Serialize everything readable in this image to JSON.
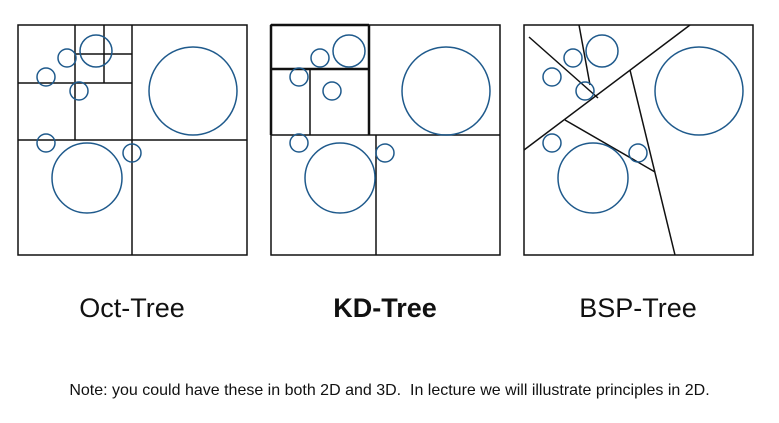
{
  "panels": [
    {
      "id": "oct",
      "label": "Oct-Tree",
      "emphasized": false
    },
    {
      "id": "kd",
      "label": "KD-Tree",
      "emphasized": true
    },
    {
      "id": "bsp",
      "label": "BSP-Tree",
      "emphasized": false
    }
  ],
  "note": "Note: you could have these in both 2D and 3D.  In lecture we will illustrate principles in 2D.",
  "colors": {
    "circle_stroke": "#1f5a8c",
    "line_stroke": "#111111",
    "background": "#ffffff"
  }
}
